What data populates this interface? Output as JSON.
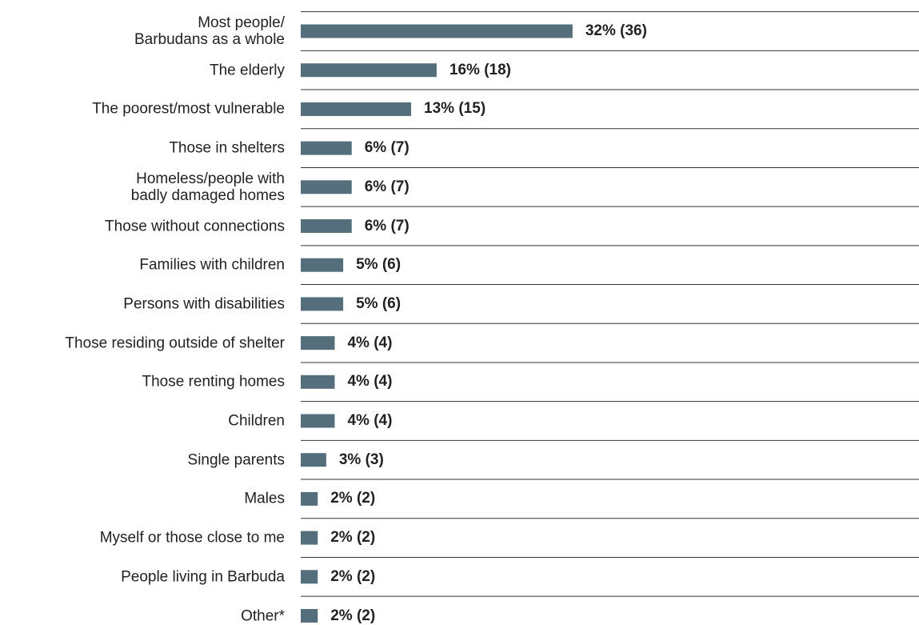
{
  "chart_data": {
    "type": "bar",
    "orientation": "horizontal",
    "categories": [
      "Most people/\nBarbudans as a whole",
      "The elderly",
      "The poorest/most vulnerable",
      "Those in shelters",
      "Homeless/people with\nbadly damaged homes",
      "Those without connections",
      "Families with children",
      "Persons with disabilities",
      "Those residing outside of shelter",
      "Those renting homes",
      "Children",
      "Single parents",
      "Males",
      "Myself or those close to me",
      "People living in Barbuda",
      "Other*"
    ],
    "values": [
      32,
      16,
      13,
      6,
      6,
      6,
      5,
      5,
      4,
      4,
      4,
      3,
      2,
      2,
      2,
      2
    ],
    "value_labels": [
      "32% (36)",
      "16% (18)",
      "13% (15)",
      "6% (7)",
      "6% (7)",
      "6% (7)",
      "5% (6)",
      "5% (6)",
      "4% (4)",
      "4% (4)",
      "4% (4)",
      "3% (3)",
      "2% (2)",
      "2% (2)",
      "2% (2)",
      "2% (2)"
    ],
    "color": "#546e7b"
  }
}
